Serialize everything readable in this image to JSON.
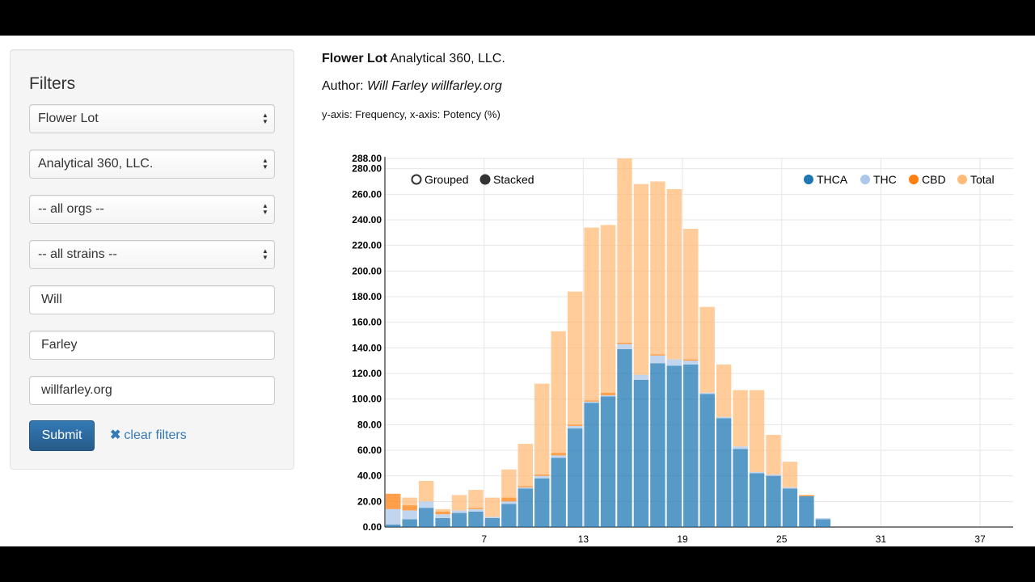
{
  "filters": {
    "title": "Filters",
    "selects": [
      "Flower Lot",
      "Analytical 360, LLC.",
      "-- all orgs --",
      "-- all strains --"
    ],
    "inputs": [
      "Will",
      "Farley",
      "willfarley.org"
    ],
    "submit_label": "Submit",
    "clear_label": "clear filters"
  },
  "header": {
    "lot_type": "Flower Lot",
    "lab": "Analytical 360, LLC.",
    "author_prefix": "Author:",
    "author": "Will Farley willfarley.org",
    "axis_note": "y-axis: Frequency, x-axis: Potency (%)"
  },
  "controls": {
    "grouped": "Grouped",
    "stacked": "Stacked",
    "selected": "Stacked"
  },
  "chart_data": {
    "type": "bar",
    "stacked": true,
    "x": [
      1,
      2,
      3,
      4,
      5,
      6,
      7,
      8,
      9,
      10,
      11,
      12,
      13,
      14,
      15,
      16,
      17,
      18,
      19,
      20,
      21,
      22,
      23,
      24,
      25,
      26,
      27,
      28
    ],
    "xlim": [
      1,
      39
    ],
    "xticks": [
      7,
      13,
      19,
      25,
      31,
      37
    ],
    "ylim": [
      0,
      288
    ],
    "ytick_labels": [
      "288.00",
      "280.00",
      "260.00",
      "240.00",
      "220.00",
      "200.00",
      "180.00",
      "160.00",
      "140.00",
      "120.00",
      "100.00",
      "80.00",
      "60.00",
      "40.00",
      "20.00",
      "0.00"
    ],
    "yticks": [
      288,
      280,
      260,
      240,
      220,
      200,
      180,
      160,
      140,
      120,
      100,
      80,
      60,
      40,
      20,
      0
    ],
    "grid": true,
    "legend_position": "top-right",
    "series": [
      {
        "name": "THCA",
        "color": "#1f77b4",
        "values": [
          2,
          6,
          15,
          7,
          11,
          12,
          7,
          18,
          30,
          38,
          54,
          77,
          97,
          102,
          139,
          115,
          128,
          126,
          127,
          104,
          85,
          61,
          42,
          40,
          30,
          24,
          6,
          0
        ]
      },
      {
        "name": "THC",
        "color": "#aec7e8",
        "values": [
          12,
          7,
          5,
          3,
          2,
          2,
          1,
          2,
          1,
          2,
          2,
          2,
          1,
          1,
          4,
          4,
          6,
          5,
          3,
          1,
          1,
          2,
          1,
          1,
          1,
          0,
          1,
          0
        ]
      },
      {
        "name": "CBD",
        "color": "#ff7f0e",
        "values": [
          12,
          4,
          0,
          2,
          0,
          1,
          0,
          3,
          1,
          1,
          2,
          1,
          1,
          2,
          1,
          0,
          1,
          0,
          1,
          0,
          0,
          0,
          0,
          0,
          0,
          1,
          0,
          0
        ]
      },
      {
        "name": "Total",
        "color": "#ffbb78",
        "values": [
          0,
          6,
          16,
          2,
          12,
          14,
          15,
          22,
          33,
          71,
          95,
          104,
          135,
          131,
          144,
          149,
          135,
          133,
          102,
          67,
          41,
          44,
          64,
          31,
          20,
          0,
          0,
          0
        ]
      }
    ]
  }
}
